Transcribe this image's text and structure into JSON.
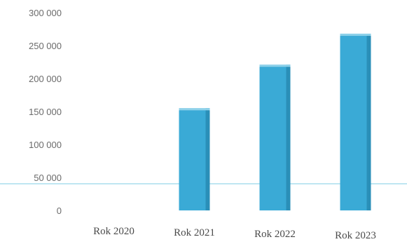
{
  "chart_data": {
    "type": "bar",
    "categories": [
      "Rok 2020",
      "Rok 2021",
      "Rok 2022",
      "Rok 2023"
    ],
    "series": [
      {
        "values": [
          0,
          155000,
          221000,
          268000
        ]
      }
    ],
    "yticks": [
      "300 000",
      "250 000",
      "200 000",
      "150 000",
      "100 000",
      "50 000",
      "0"
    ],
    "ylim": [
      0,
      300000
    ],
    "bar_color": "#3aaad6",
    "bar_side_color": "#2a8fb8",
    "bar_top_color": "#8fd2ea",
    "baseline_color": "#7fcce4",
    "title": "",
    "xlabel": "",
    "ylabel": "",
    "grid": false,
    "legend": "none"
  }
}
